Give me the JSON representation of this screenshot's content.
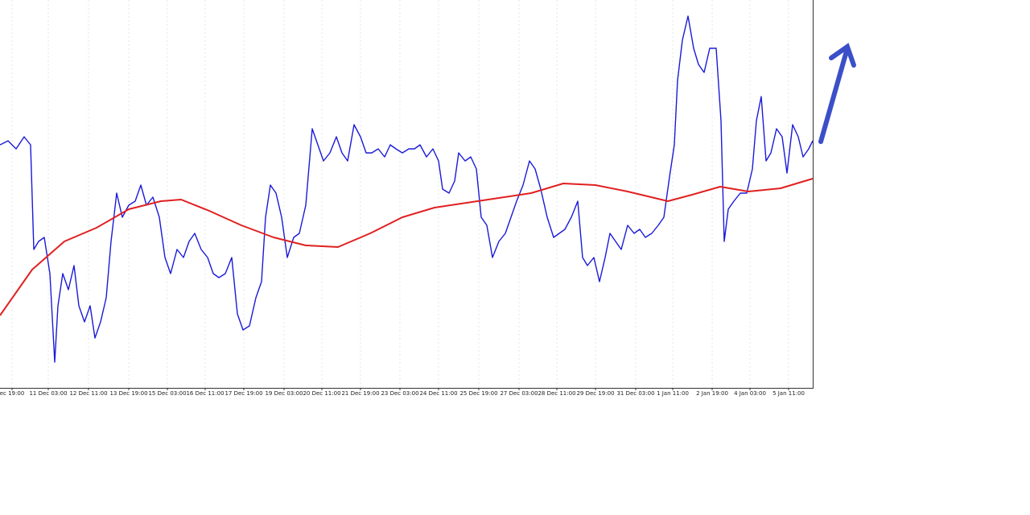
{
  "chart_data": {
    "type": "line",
    "grid": true,
    "xlim": [
      0,
      1010
    ],
    "ylim": [
      0,
      482
    ],
    "xticks": [
      {
        "value": 15,
        "label": "ec 19:00"
      },
      {
        "value": 60,
        "label": "11 Dec 03:00"
      },
      {
        "value": 110,
        "label": "12 Dec 11:00"
      },
      {
        "value": 160,
        "label": "13 Dec 19:00"
      },
      {
        "value": 208,
        "label": "15 Dec 03:00"
      },
      {
        "value": 255,
        "label": "16 Dec 11:00"
      },
      {
        "value": 303,
        "label": "17 Dec 19:00"
      },
      {
        "value": 353,
        "label": "19 Dec 03:00"
      },
      {
        "value": 400,
        "label": "20 Dec 11:00"
      },
      {
        "value": 448,
        "label": "21 Dec 19:00"
      },
      {
        "value": 497,
        "label": "23 Dec 03:00"
      },
      {
        "value": 545,
        "label": "24 Dec 11:00"
      },
      {
        "value": 595,
        "label": "25 Dec 19:00"
      },
      {
        "value": 645,
        "label": "27 Dec 03:00"
      },
      {
        "value": 692,
        "label": "28 Dec 11:00"
      },
      {
        "value": 740,
        "label": "29 Dec 19:00"
      },
      {
        "value": 790,
        "label": "31 Dec 03:00"
      },
      {
        "value": 836,
        "label": "1 Jan 11:00"
      },
      {
        "value": 885,
        "label": "2 Jan 19:00"
      },
      {
        "value": 932,
        "label": "4 Jan 03:00"
      },
      {
        "value": 980,
        "label": "5 Jan 11:00"
      }
    ],
    "series": [
      {
        "color": "#1a1ad8",
        "x": [
          0,
          10,
          20,
          30,
          38,
          42,
          48,
          55,
          62,
          68,
          72,
          78,
          85,
          92,
          98,
          105,
          112,
          118,
          125,
          132,
          138,
          145,
          152,
          160,
          168,
          175,
          182,
          190,
          198,
          205,
          212,
          220,
          228,
          235,
          242,
          250,
          258,
          265,
          272,
          280,
          288,
          295,
          302,
          310,
          318,
          325,
          330,
          336,
          343,
          350,
          357,
          365,
          372,
          380,
          388,
          395,
          402,
          410,
          418,
          425,
          432,
          440,
          448,
          455,
          462,
          470,
          478,
          485,
          492,
          500,
          508,
          515,
          522,
          530,
          538,
          545,
          550,
          558,
          565,
          570,
          578,
          585,
          592,
          598,
          605,
          612,
          620,
          628,
          635,
          642,
          650,
          658,
          665,
          672,
          680,
          688,
          695,
          702,
          710,
          718,
          724,
          730,
          738,
          745,
          752,
          758,
          765,
          772,
          780,
          788,
          795,
          802,
          810,
          818,
          825,
          832,
          838,
          842,
          848,
          855,
          862,
          868,
          875,
          882,
          890,
          896,
          900,
          905,
          912,
          920,
          928,
          935,
          940,
          946,
          952,
          958,
          965,
          972,
          978,
          985,
          992,
          998,
          1005,
          1010
        ],
        "values": [
          302,
          307,
          297,
          312,
          302,
          172,
          182,
          187,
          142,
          32,
          102,
          142,
          122,
          152,
          102,
          82,
          102,
          62,
          82,
          112,
          182,
          242,
          212,
          227,
          232,
          252,
          227,
          237,
          212,
          162,
          142,
          172,
          162,
          182,
          192,
          172,
          162,
          142,
          137,
          142,
          162,
          92,
          72,
          77,
          112,
          132,
          212,
          252,
          242,
          212,
          162,
          187,
          192,
          227,
          322,
          302,
          282,
          292,
          312,
          292,
          282,
          327,
          312,
          292,
          292,
          297,
          287,
          302,
          297,
          292,
          297,
          297,
          302,
          287,
          297,
          282,
          247,
          242,
          257,
          292,
          282,
          287,
          272,
          212,
          202,
          162,
          182,
          192,
          212,
          232,
          252,
          282,
          272,
          247,
          212,
          187,
          192,
          197,
          212,
          232,
          162,
          152,
          162,
          132,
          162,
          192,
          182,
          172,
          202,
          192,
          197,
          187,
          192,
          202,
          212,
          262,
          302,
          382,
          432,
          462,
          422,
          402,
          392,
          422,
          422,
          332,
          182,
          222,
          232,
          242,
          242,
          272,
          332,
          362,
          282,
          292,
          322,
          312,
          267,
          327,
          312,
          287,
          297,
          307
        ]
      },
      {
        "color": "#e02020",
        "x": [
          0,
          40,
          80,
          120,
          160,
          200,
          225,
          260,
          300,
          340,
          380,
          420,
          460,
          500,
          540,
          580,
          620,
          660,
          700,
          740,
          780,
          830,
          860,
          895,
          930,
          970,
          1010
        ],
        "values": [
          90,
          147,
          182,
          199,
          222,
          232,
          234,
          220,
          202,
          187,
          177,
          175,
          192,
          212,
          224,
          230,
          236,
          242,
          254,
          252,
          244,
          232,
          240,
          250,
          244,
          248,
          260
        ]
      }
    ]
  }
}
